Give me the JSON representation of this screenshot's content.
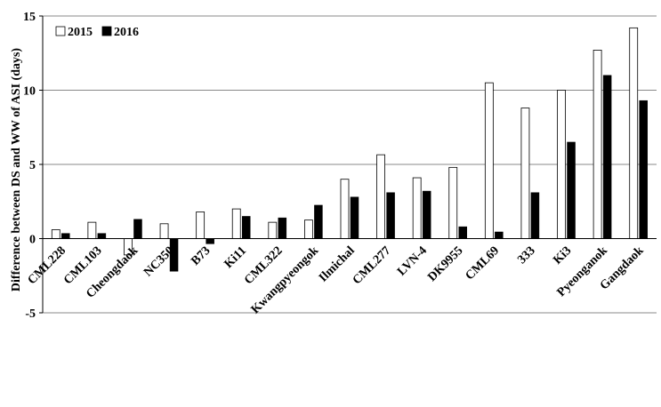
{
  "chart_data": {
    "type": "bar",
    "ylabel": "Difference between DS and WW of ASI  (days)",
    "ylim": [
      -5,
      15
    ],
    "yticks": [
      -5,
      0,
      5,
      10,
      15
    ],
    "grid": "horizontal",
    "legend_position": "top-left",
    "categories": [
      "CML228",
      "CML103",
      "Cheongdaok",
      "NC350",
      "B73",
      "Ki11",
      "CML322",
      "Kwangpyeongok",
      "Ilmichal",
      "CML277",
      "LVN-4",
      "DK9955",
      "CML69",
      "333",
      "Ki3",
      "Pyeonganok",
      "Gangdaok"
    ],
    "series": [
      {
        "name": "2015",
        "color": "#ffffff",
        "values": [
          0.6,
          1.1,
          -1.1,
          1.0,
          1.8,
          2.0,
          1.1,
          1.25,
          4.0,
          5.65,
          4.1,
          4.8,
          10.5,
          8.8,
          10.0,
          12.7,
          14.2
        ]
      },
      {
        "name": "2016",
        "color": "#000000",
        "values": [
          0.35,
          0.35,
          1.3,
          -2.2,
          -0.35,
          1.5,
          1.4,
          2.25,
          2.8,
          3.1,
          3.2,
          0.8,
          0.45,
          3.1,
          6.5,
          11.0,
          9.3
        ]
      }
    ]
  }
}
